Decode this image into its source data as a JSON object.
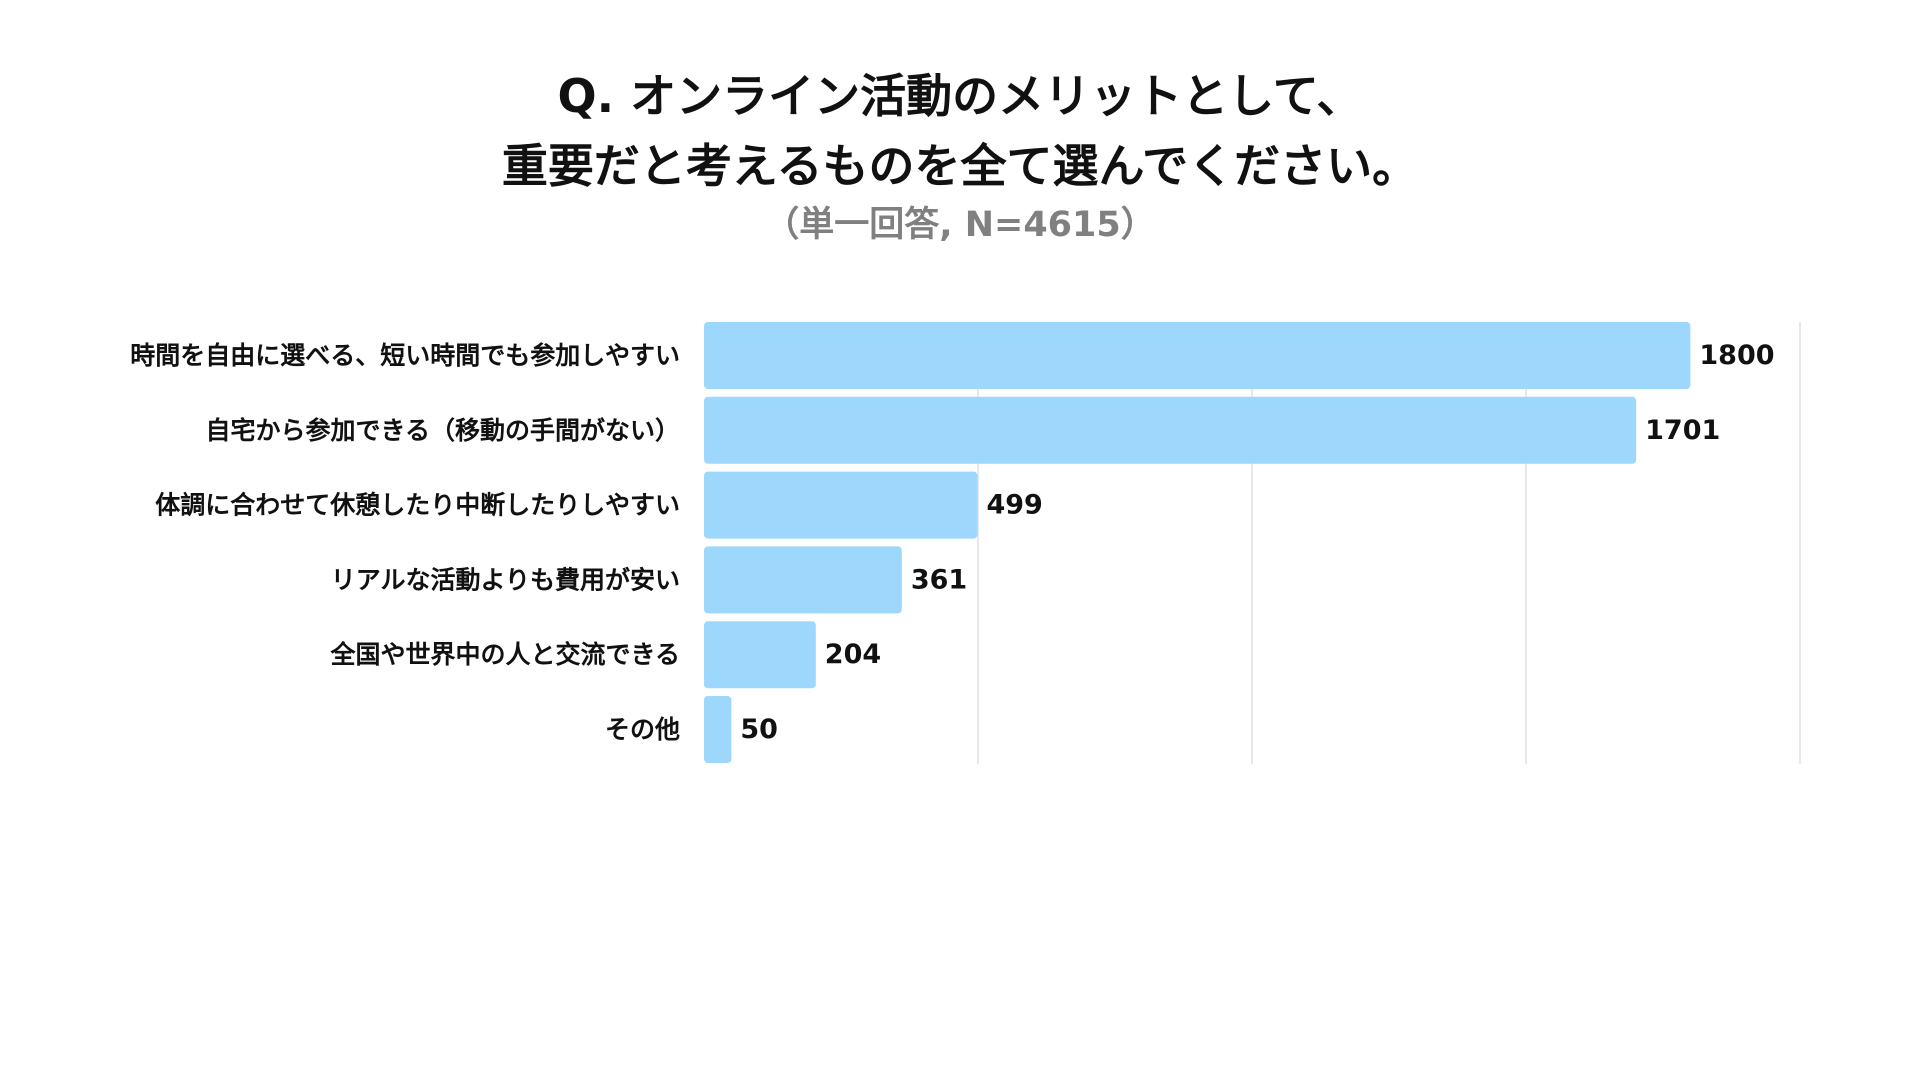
{
  "chart_data": {
    "type": "bar",
    "orientation": "horizontal",
    "title_lines": [
      "Q. オンライン活動のメリットとして、",
      "重要だと考えるものを全て選んでください。"
    ],
    "subtitle": "（単一回答, N=4615）",
    "categories": [
      "時間を自由に選べる、短い時間でも参加しやすい",
      "自宅から参加できる（移動の手間がない）",
      "体調に合わせて休憩したり中断したりしやすい",
      "リアルな活動よりも費用が安い",
      "全国や世界中の人と交流できる",
      "その他"
    ],
    "values": [
      1800,
      1701,
      499,
      361,
      204,
      50
    ],
    "value_labels": [
      "1800",
      "1701",
      "499",
      "361",
      "204",
      "50"
    ],
    "xlim": [
      0,
      2000
    ],
    "gridlines": [
      500,
      1000,
      1500,
      2000
    ],
    "grid": true,
    "legend": "none",
    "colors": {
      "bar": "#9dd7fb",
      "grid": "#d9d9d9",
      "text": "#111111",
      "subtitle": "#808080"
    }
  }
}
